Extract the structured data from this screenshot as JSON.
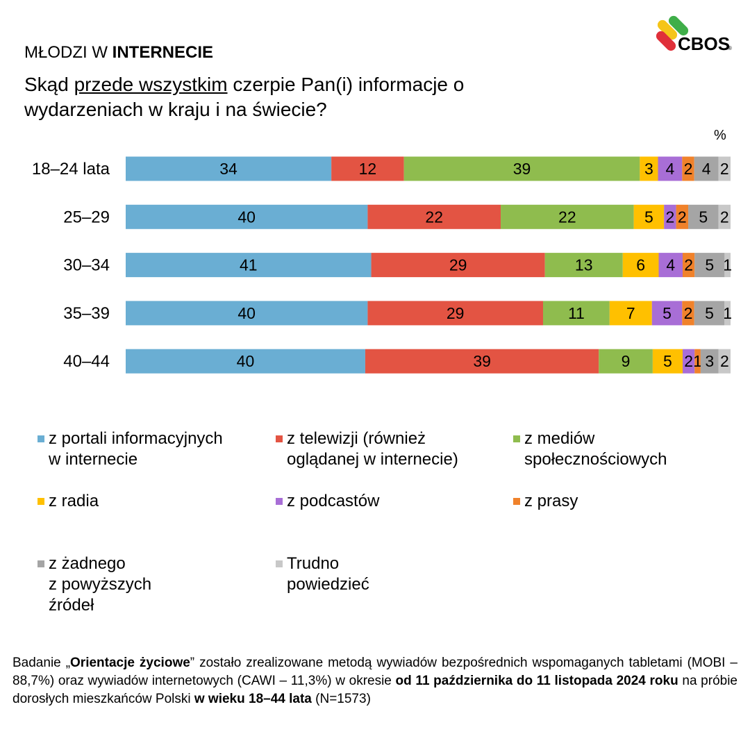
{
  "header": {
    "series_prefix": "MŁODZI W ",
    "series_bold": "INTERNECIE",
    "question_part1": "Skąd ",
    "question_underlined": "przede wszystkim",
    "question_part2": " czerpie Pan(i) informacje o wydarzeniach w kraju i na świecie?",
    "unit": "%",
    "logo_text": "CBOS"
  },
  "chart_data": {
    "type": "bar",
    "orientation": "horizontal",
    "stacked": true,
    "title": "Skąd przede wszystkim czerpie Pan(i) informacje o wydarzeniach w kraju i na świecie?",
    "unit": "%",
    "categories": [
      "18–24 lata",
      "25–29",
      "30–34",
      "35–39",
      "40–44"
    ],
    "series": [
      {
        "name": "z portali informacyjnych w internecie",
        "color": "#6AAED3",
        "values": [
          34,
          40,
          41,
          40,
          40
        ]
      },
      {
        "name": "z telewizji (również oglądanej w internecie)",
        "color": "#E35443",
        "values": [
          12,
          22,
          29,
          29,
          39
        ]
      },
      {
        "name": "z mediów społecznościowych",
        "color": "#8FBC4E",
        "values": [
          39,
          22,
          13,
          11,
          9
        ]
      },
      {
        "name": "z radia",
        "color": "#FFC000",
        "values": [
          3,
          5,
          6,
          7,
          5
        ]
      },
      {
        "name": "z podcastów",
        "color": "#A86ED6",
        "values": [
          4,
          2,
          4,
          5,
          2
        ]
      },
      {
        "name": "z prasy",
        "color": "#F0822B",
        "values": [
          2,
          2,
          2,
          2,
          1
        ]
      },
      {
        "name": "z żadnego z powyższych źródeł",
        "color": "#A5A5A5",
        "values": [
          4,
          5,
          5,
          5,
          3
        ]
      },
      {
        "name": "Trudno powiedzieć",
        "color": "#C8C8C8",
        "values": [
          2,
          2,
          1,
          1,
          2
        ]
      }
    ],
    "legend_placement": "bottom",
    "grid": false
  },
  "legend": [
    {
      "line1": "z portali informacyjnych",
      "line2": "w internecie",
      "line3": ""
    },
    {
      "line1": "z telewizji (również",
      "line2": "oglądanej w internecie)",
      "line3": ""
    },
    {
      "line1": "z mediów",
      "line2": "społecznościowych",
      "line3": ""
    },
    {
      "line1": "z radia",
      "line2": "",
      "line3": ""
    },
    {
      "line1": "z podcastów",
      "line2": "",
      "line3": ""
    },
    {
      "line1": "z prasy",
      "line2": "",
      "line3": ""
    },
    {
      "line1": "z żadnego",
      "line2": "z powyższych",
      "line3": "źródeł"
    },
    {
      "line1": "Trudno",
      "line2": "powiedzieć",
      "line3": ""
    }
  ],
  "footer": [
    {
      "t": "Badanie „",
      "b": false
    },
    {
      "t": "Orientacje życiowe",
      "b": true
    },
    {
      "t": "” zostało zrealizowane metodą wywiadów bezpośrednich wspomaganych tabletami (MOBI – 88,7%) oraz wywiadów internetowych (CAWI – 11,3%) w okresie ",
      "b": false
    },
    {
      "t": "od 11 października do 11 listopada 2024 roku",
      "b": true
    },
    {
      "t": " na próbie dorosłych mieszkańców Polski ",
      "b": false
    },
    {
      "t": "w wieku 18–44 lata",
      "b": true
    },
    {
      "t": " (N=1573)",
      "b": false
    }
  ]
}
